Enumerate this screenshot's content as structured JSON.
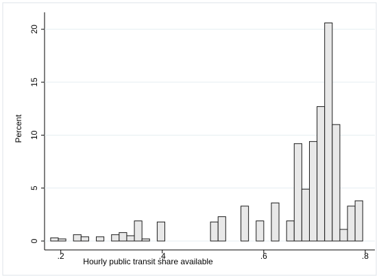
{
  "chart_data": {
    "type": "histogram",
    "x_label": "Hourly public transit share available",
    "y_label": "Percent",
    "bins": [
      0.18,
      0.195,
      0.21,
      0.225,
      0.24,
      0.255,
      0.27,
      0.285,
      0.3,
      0.315,
      0.33,
      0.345,
      0.36,
      0.375,
      0.39,
      0.405,
      0.42,
      0.435,
      0.45,
      0.465,
      0.48,
      0.495,
      0.51,
      0.525,
      0.54,
      0.555,
      0.57,
      0.585,
      0.6,
      0.615,
      0.63,
      0.645,
      0.66,
      0.675,
      0.69,
      0.705,
      0.72,
      0.735,
      0.75,
      0.765,
      0.78,
      0.795
    ],
    "values": [
      0.3,
      0.2,
      0,
      0.6,
      0.4,
      0,
      0.4,
      0,
      0.6,
      0.8,
      0.5,
      1.9,
      0.2,
      0,
      1.8,
      0,
      0,
      0,
      0,
      0,
      0,
      1.8,
      2.3,
      0,
      0,
      3.3,
      0,
      1.9,
      0,
      3.6,
      0,
      1.9,
      9.2,
      4.9,
      9.4,
      12.7,
      20.6,
      11,
      1.1,
      3.3,
      3.8
    ],
    "color": "#e8e8e8",
    "xlim": [
      0.168,
      0.819
    ],
    "ylim": [
      0,
      21.6
    ],
    "xticks": [
      {
        "value": 0.2,
        "label": ".2"
      },
      {
        "value": 0.4,
        "label": ".4"
      },
      {
        "value": 0.6,
        "label": ".6"
      },
      {
        "value": 0.8,
        "label": ".8"
      }
    ],
    "yticks": [
      0,
      5,
      10,
      15,
      20
    ],
    "grid": true
  }
}
